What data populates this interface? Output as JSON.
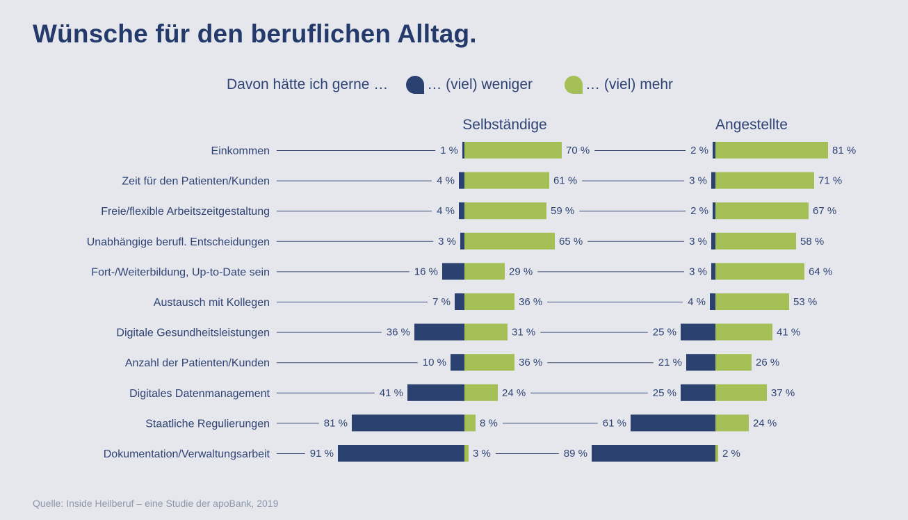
{
  "page": {
    "title": "Wünsche für den beruflichen Alltag.",
    "source": "Quelle: Inside Heilberuf – eine Studie der apoBank, 2019"
  },
  "legend": {
    "intro": "Davon hätte ich gerne …",
    "less": "… (viel) weniger",
    "more": "… (viel) mehr"
  },
  "colors": {
    "less": "#2b4170",
    "more": "#a3bf55",
    "text": "#2f4374",
    "line": "#3d4f7a"
  },
  "chart_data": {
    "type": "bar",
    "orientation": "horizontal-diverging",
    "categories": [
      "Einkommen",
      "Zeit für den Patienten/Kunden",
      "Freie/flexible Arbeitszeitgestaltung",
      "Unabhängige berufl. Entscheidungen",
      "Fort-/Weiterbildung, Up-to-Date sein",
      "Austausch mit Kollegen",
      "Digitale Gesundheitsleistungen",
      "Anzahl der Patienten/Kunden",
      "Digitales Datenmanagement",
      "Staatliche Regulierungen",
      "Dokumentation/Verwaltungsarbeit"
    ],
    "groups": [
      {
        "name": "Selbständige",
        "series": [
          {
            "name": "… (viel) weniger",
            "values": [
              1,
              4,
              4,
              3,
              16,
              7,
              36,
              10,
              41,
              81,
              91
            ]
          },
          {
            "name": "… (viel) mehr",
            "values": [
              70,
              61,
              59,
              65,
              29,
              36,
              31,
              36,
              24,
              8,
              3
            ]
          }
        ]
      },
      {
        "name": "Angestellte",
        "series": [
          {
            "name": "… (viel) weniger",
            "values": [
              2,
              3,
              2,
              3,
              3,
              4,
              25,
              21,
              25,
              61,
              89
            ]
          },
          {
            "name": "… (viel) mehr",
            "values": [
              81,
              71,
              67,
              58,
              64,
              53,
              41,
              26,
              37,
              24,
              2
            ]
          }
        ]
      }
    ],
    "value_suffix": " %"
  }
}
